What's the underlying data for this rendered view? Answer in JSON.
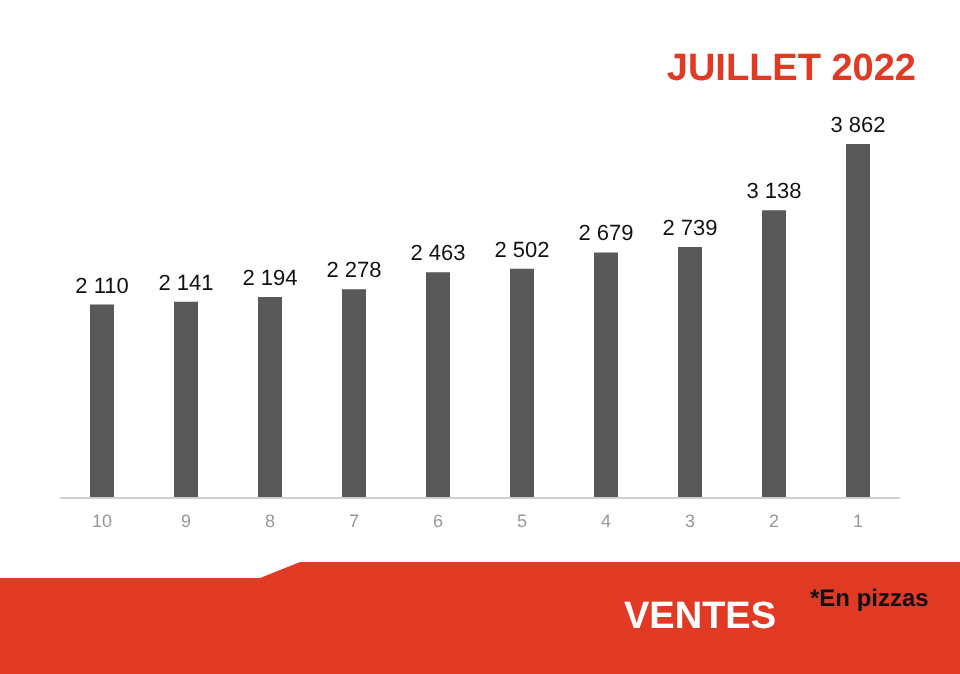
{
  "chart_data": {
    "type": "bar",
    "title": "JUILLET 2022",
    "subtitle": "VENTES",
    "annotations": [
      "*En pizzas"
    ],
    "categories": [
      "10",
      "9",
      "8",
      "7",
      "6",
      "5",
      "4",
      "3",
      "2",
      "1"
    ],
    "values": [
      2110,
      2141,
      2194,
      2278,
      2463,
      2502,
      2679,
      2739,
      3138,
      3862
    ],
    "color": "#595959",
    "data_labels": true
  }
}
